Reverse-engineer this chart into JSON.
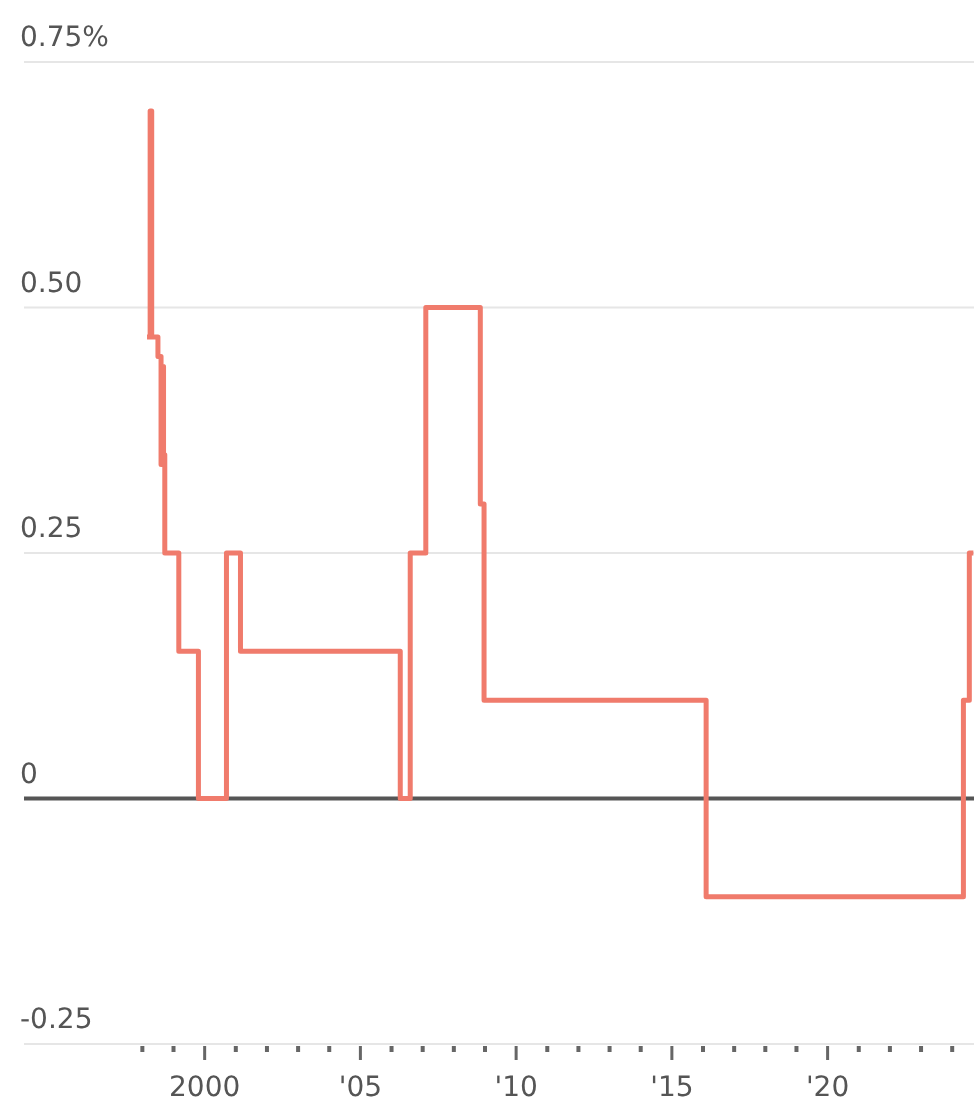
{
  "chart_data": {
    "type": "step",
    "xlim": [
      1994.2,
      2024.7
    ],
    "ylim": [
      -0.25,
      0.75
    ],
    "yticks": [
      {
        "value": 0.75,
        "label": "0.75%"
      },
      {
        "value": 0.5,
        "label": "0.50"
      },
      {
        "value": 0.25,
        "label": "0.25"
      },
      0,
      -0.25
    ],
    "xticks": [
      {
        "value": 1998,
        "label": null
      },
      {
        "value": 1999,
        "label": null
      },
      2000,
      {
        "value": 2001,
        "label": null
      },
      {
        "value": 2002,
        "label": null
      },
      {
        "value": 2003,
        "label": null
      },
      {
        "value": 2004,
        "label": null
      },
      {
        "value": 2005,
        "label": "'05"
      },
      {
        "value": 2006,
        "label": null
      },
      {
        "value": 2007,
        "label": null
      },
      {
        "value": 2008,
        "label": null
      },
      {
        "value": 2009,
        "label": null
      },
      {
        "value": 2010,
        "label": "'10"
      },
      {
        "value": 2011,
        "label": null
      },
      {
        "value": 2012,
        "label": null
      },
      {
        "value": 2013,
        "label": null
      },
      {
        "value": 2014,
        "label": null
      },
      {
        "value": 2015,
        "label": "'15"
      },
      {
        "value": 2016,
        "label": null
      },
      {
        "value": 2017,
        "label": null
      },
      {
        "value": 2018,
        "label": null
      },
      {
        "value": 2019,
        "label": null
      },
      {
        "value": 2020,
        "label": "'20"
      },
      {
        "value": 2021,
        "label": null
      },
      {
        "value": 2022,
        "label": null
      },
      {
        "value": 2023,
        "label": null
      },
      {
        "value": 2024,
        "label": null
      }
    ],
    "grid": "y",
    "ref_lines": [
      {
        "axis": "y",
        "value": 0,
        "color": "#555555"
      }
    ],
    "series": [
      {
        "color": "#f07b6c",
        "x": [
          1998.15,
          1998.25,
          1998.3,
          1998.5,
          1998.6,
          1998.63,
          1998.68,
          1998.72,
          1999.17,
          1999.8,
          2000.7,
          2001.15,
          2006.28,
          2006.6,
          2007.1,
          2008.85,
          2008.97,
          2016.1,
          2024.36,
          2024.55,
          2024.68
        ],
        "values": [
          0.47,
          0.7,
          0.47,
          0.45,
          0.34,
          0.44,
          0.35,
          0.25,
          0.15,
          0,
          0.25,
          0.15,
          0,
          0.25,
          0.5,
          0.3,
          0.1,
          -0.1,
          0.1,
          0.25,
          0.25
        ]
      }
    ]
  }
}
